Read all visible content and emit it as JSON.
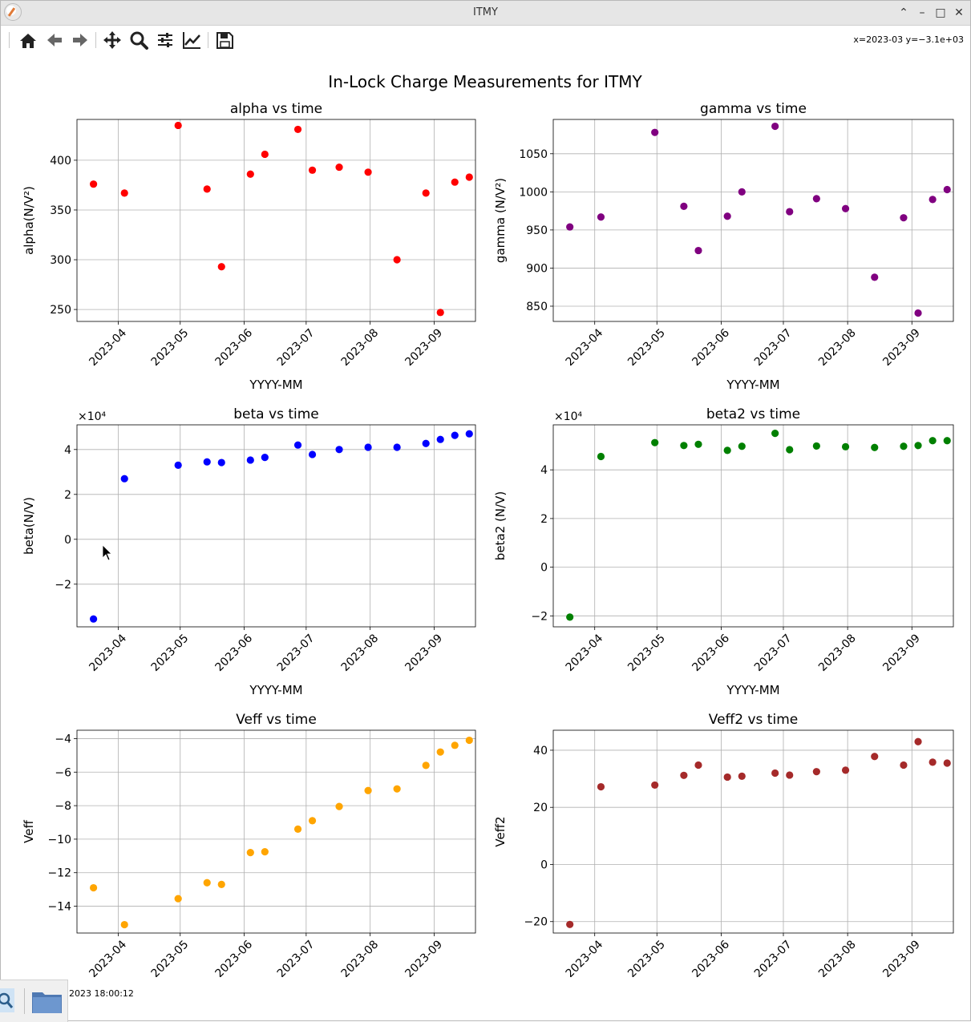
{
  "window": {
    "title": "ITMY"
  },
  "toolbar": {
    "buttons": [
      {
        "name": "home-button",
        "icon": "home-icon"
      },
      {
        "name": "back-button",
        "icon": "arrow-left-icon"
      },
      {
        "name": "forward-button",
        "icon": "arrow-right-icon"
      },
      {
        "name": "pan-button",
        "icon": "move-icon"
      },
      {
        "name": "zoom-button",
        "icon": "magnifier-icon"
      },
      {
        "name": "configure-subplots-button",
        "icon": "sliders-icon"
      },
      {
        "name": "edit-axis-button",
        "icon": "line-chart-icon"
      },
      {
        "name": "save-button",
        "icon": "floppy-icon"
      }
    ],
    "coords_text": "x=2023-03 y=−3.1e+03"
  },
  "taskbar": {
    "clock_text": "2023 18:00:12"
  },
  "figure": {
    "suptitle": "In-Lock Charge Measurements for ITMY"
  },
  "chart_data": [
    {
      "type": "scatter",
      "title": "alpha vs time",
      "xlabel": "YYYY-MM",
      "ylabel": "alpha(N/V²)",
      "color": "#ff0000",
      "ylim": [
        238,
        441
      ],
      "yticks": [
        250,
        300,
        350,
        400
      ],
      "ytick_labels": [
        "250",
        "300",
        "350",
        "400"
      ],
      "x": [
        "2023-03-20",
        "2023-04-04",
        "2023-04-30",
        "2023-05-14",
        "2023-05-21",
        "2023-06-04",
        "2023-06-11",
        "2023-06-27",
        "2023-07-04",
        "2023-07-17",
        "2023-07-31",
        "2023-08-14",
        "2023-08-28",
        "2023-09-04",
        "2023-09-11",
        "2023-09-18"
      ],
      "y": [
        376,
        367,
        435,
        371,
        293,
        386,
        406,
        431,
        390,
        393,
        388,
        300,
        367,
        247,
        378,
        383
      ]
    },
    {
      "type": "scatter",
      "title": "gamma vs time",
      "xlabel": "YYYY-MM",
      "ylabel": "gamma (N/V²)",
      "color": "#800080",
      "ylim": [
        830,
        1095
      ],
      "yticks": [
        850,
        900,
        950,
        1000,
        1050
      ],
      "ytick_labels": [
        "850",
        "900",
        "950",
        "1000",
        "1050"
      ],
      "x": [
        "2023-03-20",
        "2023-04-04",
        "2023-04-30",
        "2023-05-14",
        "2023-05-21",
        "2023-06-04",
        "2023-06-11",
        "2023-06-27",
        "2023-07-04",
        "2023-07-17",
        "2023-07-31",
        "2023-08-14",
        "2023-08-28",
        "2023-09-04",
        "2023-09-11",
        "2023-09-18"
      ],
      "y": [
        954,
        967,
        1078,
        981,
        923,
        968,
        1000,
        1086,
        974,
        991,
        978,
        888,
        966,
        841,
        990,
        1003
      ]
    },
    {
      "type": "scatter",
      "title": "beta vs time",
      "xlabel": "YYYY-MM",
      "ylabel": "beta(N/V)",
      "y_multiplier": "×10⁴",
      "color": "#0000ff",
      "ylim": [
        -3.9,
        5.1
      ],
      "yticks": [
        -2,
        0,
        2,
        4
      ],
      "ytick_labels": [
        "−2",
        "0",
        "2",
        "4"
      ],
      "x": [
        "2023-03-20",
        "2023-04-04",
        "2023-04-30",
        "2023-05-14",
        "2023-05-21",
        "2023-06-04",
        "2023-06-11",
        "2023-06-27",
        "2023-07-04",
        "2023-07-17",
        "2023-07-31",
        "2023-08-14",
        "2023-08-28",
        "2023-09-04",
        "2023-09-11",
        "2023-09-18"
      ],
      "y": [
        -3.55,
        2.7,
        3.3,
        3.45,
        3.42,
        3.53,
        3.65,
        4.2,
        3.78,
        4.0,
        4.1,
        4.1,
        4.27,
        4.45,
        4.63,
        4.7
      ]
    },
    {
      "type": "scatter",
      "title": "beta2 vs time",
      "xlabel": "YYYY-MM",
      "ylabel": "beta2 (N/V)",
      "y_multiplier": "×10⁴",
      "color": "#008000",
      "ylim": [
        -2.45,
        5.85
      ],
      "yticks": [
        -2,
        0,
        2,
        4
      ],
      "ytick_labels": [
        "−2",
        "0",
        "2",
        "4"
      ],
      "x": [
        "2023-03-20",
        "2023-04-04",
        "2023-04-30",
        "2023-05-14",
        "2023-05-21",
        "2023-06-04",
        "2023-06-11",
        "2023-06-27",
        "2023-07-04",
        "2023-07-17",
        "2023-07-31",
        "2023-08-14",
        "2023-08-28",
        "2023-09-04",
        "2023-09-11",
        "2023-09-18"
      ],
      "y": [
        -2.05,
        4.55,
        5.12,
        5.0,
        5.05,
        4.8,
        4.97,
        5.5,
        4.83,
        4.98,
        4.95,
        4.92,
        4.97,
        5.0,
        5.2,
        5.2
      ]
    },
    {
      "type": "scatter",
      "title": "Veff vs time",
      "xlabel": "YYYY-MM",
      "ylabel": "Veff",
      "color": "#ffa500",
      "ylim": [
        -15.6,
        -3.5
      ],
      "yticks": [
        -14,
        -12,
        -10,
        -8,
        -6,
        -4
      ],
      "ytick_labels": [
        "−14",
        "−12",
        "−10",
        "−8",
        "−6",
        "−4"
      ],
      "x": [
        "2023-03-20",
        "2023-04-04",
        "2023-04-30",
        "2023-05-14",
        "2023-05-21",
        "2023-06-04",
        "2023-06-11",
        "2023-06-27",
        "2023-07-04",
        "2023-07-17",
        "2023-07-31",
        "2023-08-14",
        "2023-08-28",
        "2023-09-04",
        "2023-09-11",
        "2023-09-18"
      ],
      "y": [
        -12.9,
        -15.1,
        -13.55,
        -12.6,
        -12.7,
        -10.8,
        -10.75,
        -9.4,
        -8.9,
        -8.05,
        -7.1,
        -7.0,
        -5.6,
        -4.8,
        -4.4,
        -4.1
      ]
    },
    {
      "type": "scatter",
      "title": "Veff2 vs time",
      "xlabel": "YYYY-MM",
      "ylabel": "Veff2",
      "color": "#a52a2a",
      "ylim": [
        -24,
        47
      ],
      "yticks": [
        -20,
        0,
        20,
        40
      ],
      "ytick_labels": [
        "−20",
        "0",
        "20",
        "40"
      ],
      "x": [
        "2023-03-20",
        "2023-04-04",
        "2023-04-30",
        "2023-05-14",
        "2023-05-21",
        "2023-06-04",
        "2023-06-11",
        "2023-06-27",
        "2023-07-04",
        "2023-07-17",
        "2023-07-31",
        "2023-08-14",
        "2023-08-28",
        "2023-09-04",
        "2023-09-11",
        "2023-09-18"
      ],
      "y": [
        -21,
        27.2,
        27.8,
        31.2,
        34.8,
        30.6,
        30.9,
        32.0,
        31.3,
        32.5,
        33.0,
        37.8,
        34.8,
        43.0,
        35.8,
        35.5
      ]
    }
  ],
  "shared_x": {
    "xlim": [
      "2023-03-12",
      "2023-09-21"
    ],
    "ticks": [
      "2023-04-01",
      "2023-05-01",
      "2023-06-01",
      "2023-07-01",
      "2023-08-01",
      "2023-09-01"
    ],
    "tick_labels": [
      "2023-04",
      "2023-05",
      "2023-06",
      "2023-07",
      "2023-08",
      "2023-09"
    ]
  }
}
